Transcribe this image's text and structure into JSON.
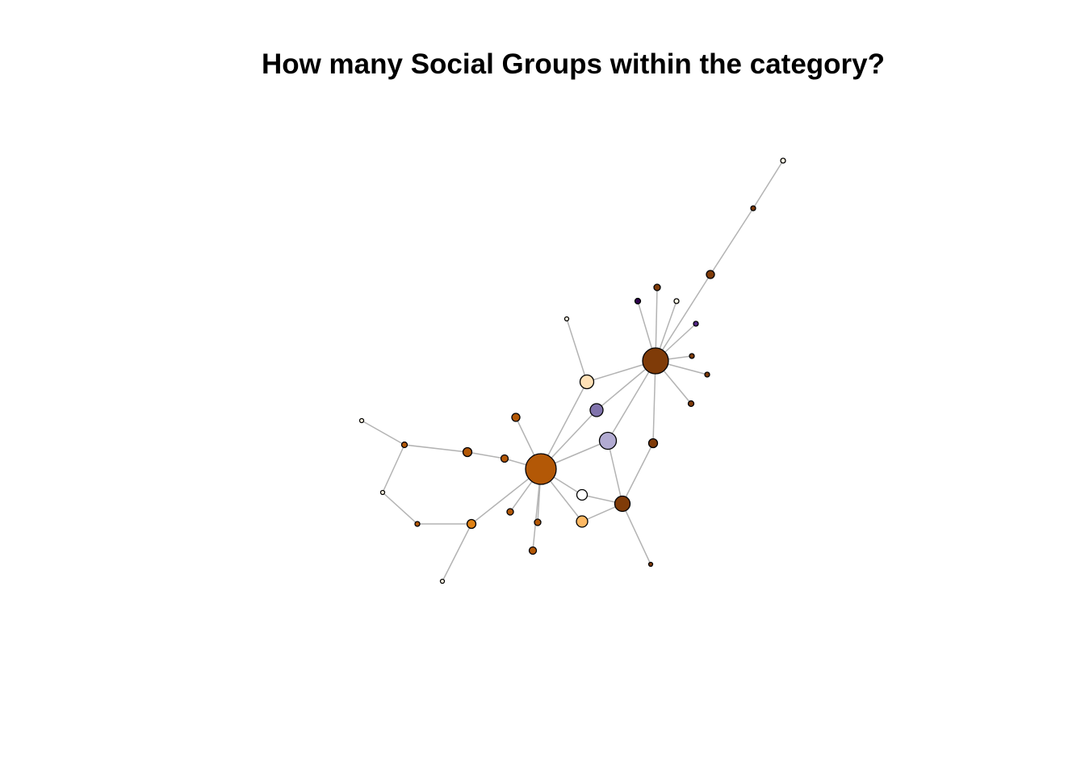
{
  "title": "How many Social Groups within the category?",
  "colors": {
    "background": "#ffffff",
    "edge": "#b3b3b3",
    "node_outline": "#000000"
  },
  "graph": {
    "nodes": [
      {
        "id": "hub-orange",
        "color": "#b35806"
      },
      {
        "id": "hub-brown",
        "color": "#7f3b08"
      },
      {
        "id": "n-top-far",
        "color": "#fff7e4"
      },
      {
        "id": "n-top-mid",
        "color": "#7f3b08"
      },
      {
        "id": "n-top-near",
        "color": "#7f3b08"
      },
      {
        "id": "n-spoke-brown-a",
        "color": "#7f3b08"
      },
      {
        "id": "n-spoke-purple-a",
        "color": "#2d004b"
      },
      {
        "id": "n-spoke-white",
        "color": "#fff7e4"
      },
      {
        "id": "n-spoke-purple-b",
        "color": "#542788"
      },
      {
        "id": "n-spoke-brown-b",
        "color": "#7f3b08"
      },
      {
        "id": "n-spoke-brown-c",
        "color": "#7f3b08"
      },
      {
        "id": "n-spoke-brown-d",
        "color": "#7f3b08"
      },
      {
        "id": "n-peach",
        "color": "#fee0b6"
      },
      {
        "id": "n-peach-leaf",
        "color": "#fff7e4"
      },
      {
        "id": "n-lavender-dark",
        "color": "#8073ac"
      },
      {
        "id": "n-lavender-light",
        "color": "#b2abd2"
      },
      {
        "id": "n-brown-mid",
        "color": "#7f3b08"
      },
      {
        "id": "n-hub-small",
        "color": "#7f3b08"
      },
      {
        "id": "n-hub-small-leaf",
        "color": "#7f3b08"
      },
      {
        "id": "n-white-mid",
        "color": "#ffffff"
      },
      {
        "id": "n-light-orange",
        "color": "#fdb863"
      },
      {
        "id": "n-orange-top",
        "color": "#b35806"
      },
      {
        "id": "n-orange-near",
        "color": "#b35806"
      },
      {
        "id": "n-orange-left",
        "color": "#b35806"
      },
      {
        "id": "n-orange-left2",
        "color": "#b35806"
      },
      {
        "id": "n-left-leaf",
        "color": "#fff7e4"
      },
      {
        "id": "n-ring-a",
        "color": "#fff7e4"
      },
      {
        "id": "n-ring-b",
        "color": "#b35806"
      },
      {
        "id": "n-ring-c",
        "color": "#e08214"
      },
      {
        "id": "n-bottom-leaf",
        "color": "#fff7e4"
      },
      {
        "id": "n-orange-b1",
        "color": "#b35806"
      },
      {
        "id": "n-orange-b2",
        "color": "#b35806"
      },
      {
        "id": "n-orange-b3",
        "color": "#b35806"
      }
    ],
    "edges": [
      [
        "n-top-far",
        "n-top-mid"
      ],
      [
        "n-top-mid",
        "n-top-near"
      ],
      [
        "n-top-near",
        "hub-brown"
      ],
      [
        "hub-brown",
        "n-spoke-brown-a"
      ],
      [
        "hub-brown",
        "n-spoke-purple-a"
      ],
      [
        "hub-brown",
        "n-spoke-white"
      ],
      [
        "hub-brown",
        "n-spoke-purple-b"
      ],
      [
        "hub-brown",
        "n-spoke-brown-b"
      ],
      [
        "hub-brown",
        "n-spoke-brown-c"
      ],
      [
        "hub-brown",
        "n-spoke-brown-d"
      ],
      [
        "hub-brown",
        "n-peach"
      ],
      [
        "n-peach",
        "n-peach-leaf"
      ],
      [
        "n-peach",
        "hub-orange"
      ],
      [
        "hub-brown",
        "n-lavender-dark"
      ],
      [
        "n-lavender-dark",
        "hub-orange"
      ],
      [
        "hub-brown",
        "n-lavender-light"
      ],
      [
        "n-lavender-light",
        "hub-orange"
      ],
      [
        "n-lavender-light",
        "n-hub-small"
      ],
      [
        "hub-brown",
        "n-brown-mid"
      ],
      [
        "n-brown-mid",
        "n-hub-small"
      ],
      [
        "n-hub-small",
        "n-hub-small-leaf"
      ],
      [
        "n-hub-small",
        "n-white-mid"
      ],
      [
        "n-hub-small",
        "n-light-orange"
      ],
      [
        "hub-orange",
        "n-white-mid"
      ],
      [
        "hub-orange",
        "n-light-orange"
      ],
      [
        "hub-orange",
        "n-orange-top"
      ],
      [
        "hub-orange",
        "n-orange-near"
      ],
      [
        "n-orange-near",
        "n-orange-left"
      ],
      [
        "n-orange-left",
        "n-orange-left2"
      ],
      [
        "n-orange-left2",
        "n-left-leaf"
      ],
      [
        "n-orange-left2",
        "n-ring-a"
      ],
      [
        "n-ring-a",
        "n-ring-b"
      ],
      [
        "n-ring-b",
        "n-ring-c"
      ],
      [
        "n-ring-c",
        "hub-orange"
      ],
      [
        "n-ring-c",
        "n-bottom-leaf"
      ],
      [
        "hub-orange",
        "n-orange-b1"
      ],
      [
        "hub-orange",
        "n-orange-b2"
      ],
      [
        "hub-orange",
        "n-orange-b3"
      ]
    ]
  }
}
